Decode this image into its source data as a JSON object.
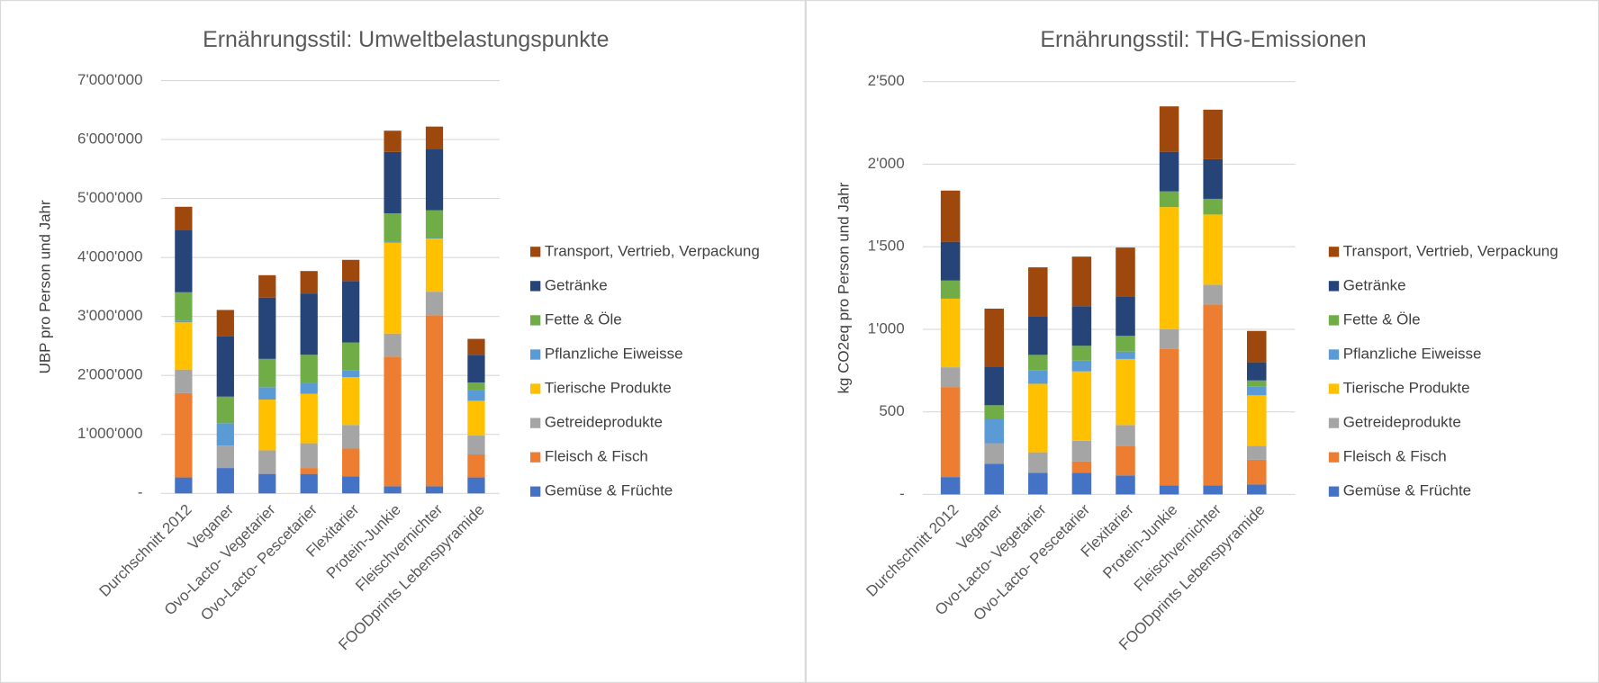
{
  "chart_data": [
    {
      "type": "bar",
      "stacked": true,
      "title": "Ernährungsstil: Umweltbelastungspunkte",
      "ylabel": "UBP pro Person und Jahr",
      "categories": [
        "Durchschnitt 2012",
        "Veganer",
        "Ovo-Lacto- Vegetarier",
        "Ovo-Lacto- Pescetarier",
        "Flexitarier",
        "Protein-Junkie",
        "Fleischvernichter",
        "FOODprints Lebenspyramide"
      ],
      "ylim": [
        0,
        7000000
      ],
      "yticks": [
        {
          "value": 0,
          "label": "-"
        },
        {
          "value": 1000000,
          "label": "1'000'000"
        },
        {
          "value": 2000000,
          "label": "2'000'000"
        },
        {
          "value": 3000000,
          "label": "3'000'000"
        },
        {
          "value": 4000000,
          "label": "4'000'000"
        },
        {
          "value": 5000000,
          "label": "5'000'000"
        },
        {
          "value": 6000000,
          "label": "6'000'000"
        },
        {
          "value": 7000000,
          "label": "7'000'000"
        }
      ],
      "grid": true,
      "legend": "right",
      "series": [
        {
          "name": "Gemüse & Früchte",
          "color": "#4472c4",
          "values": [
            270000,
            430000,
            330000,
            330000,
            290000,
            120000,
            120000,
            270000
          ]
        },
        {
          "name": "Fleisch & Fisch",
          "color": "#ed7d31",
          "values": [
            1430000,
            0,
            0,
            100000,
            470000,
            2200000,
            2900000,
            390000
          ]
        },
        {
          "name": "Getreideprodukte",
          "color": "#a5a5a5",
          "values": [
            400000,
            380000,
            400000,
            420000,
            400000,
            390000,
            400000,
            320000
          ]
        },
        {
          "name": "Tierische Produkte",
          "color": "#ffc000",
          "values": [
            800000,
            0,
            860000,
            840000,
            810000,
            1540000,
            900000,
            590000
          ]
        },
        {
          "name": "Pflanzliche Eiweisse",
          "color": "#5b9bd5",
          "values": [
            30000,
            380000,
            210000,
            190000,
            120000,
            20000,
            10000,
            180000
          ]
        },
        {
          "name": "Fette & Öle",
          "color": "#70ad47",
          "values": [
            480000,
            450000,
            480000,
            470000,
            470000,
            480000,
            470000,
            130000
          ]
        },
        {
          "name": "Getränke",
          "color": "#264478",
          "values": [
            1050000,
            1020000,
            1040000,
            1040000,
            1040000,
            1040000,
            1040000,
            470000
          ]
        },
        {
          "name": "Transport, Vertrieb, Verpackung",
          "color": "#9e480e",
          "values": [
            400000,
            450000,
            380000,
            380000,
            360000,
            360000,
            380000,
            270000
          ]
        }
      ]
    },
    {
      "type": "bar",
      "stacked": true,
      "title": "Ernährungsstil: THG-Emissionen",
      "ylabel": "kg CO2eq pro Person und Jahr",
      "categories": [
        "Durchschnitt 2012",
        "Veganer",
        "Ovo-Lacto- Vegetarier",
        "Ovo-Lacto- Pescetarier",
        "Flexitarier",
        "Protein-Junkie",
        "Fleischvernichter",
        "FOODprints Lebenspyramide"
      ],
      "ylim": [
        0,
        2500
      ],
      "yticks": [
        {
          "value": 0,
          "label": "-"
        },
        500,
        {
          "value": 1000,
          "label": "1'000"
        },
        {
          "value": 1500,
          "label": "1'500"
        },
        {
          "value": 2000,
          "label": "2'000"
        },
        {
          "value": 2500,
          "label": "2'500"
        }
      ],
      "grid": true,
      "legend": "right",
      "series": [
        {
          "name": "Gemüse & Früchte",
          "color": "#4472c4",
          "values": [
            105,
            185,
            130,
            130,
            115,
            55,
            55,
            60
          ]
        },
        {
          "name": "Fleisch & Fisch",
          "color": "#ed7d31",
          "values": [
            545,
            0,
            0,
            70,
            180,
            825,
            1095,
            150
          ]
        },
        {
          "name": "Getreideprodukte",
          "color": "#a5a5a5",
          "values": [
            120,
            125,
            125,
            125,
            125,
            120,
            120,
            85
          ]
        },
        {
          "name": "Tierische Produkte",
          "color": "#ffc000",
          "values": [
            415,
            0,
            415,
            420,
            400,
            740,
            425,
            305
          ]
        },
        {
          "name": "Pflanzliche Eiweisse",
          "color": "#5b9bd5",
          "values": [
            5,
            150,
            80,
            65,
            45,
            0,
            0,
            55
          ]
        },
        {
          "name": "Fette & Öle",
          "color": "#70ad47",
          "values": [
            105,
            80,
            95,
            90,
            95,
            95,
            95,
            35
          ]
        },
        {
          "name": "Getränke",
          "color": "#264478",
          "values": [
            235,
            235,
            235,
            240,
            240,
            240,
            240,
            110
          ]
        },
        {
          "name": "Transport, Vertrieb, Verpackung",
          "color": "#9e480e",
          "values": [
            310,
            350,
            295,
            300,
            295,
            275,
            300,
            190
          ]
        }
      ]
    }
  ]
}
